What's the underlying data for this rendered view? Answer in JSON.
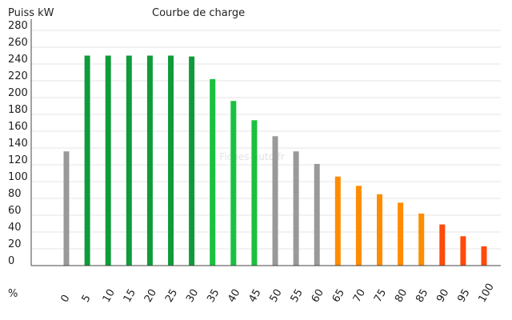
{
  "chart_data": {
    "type": "bar",
    "title": "Courbe de charge",
    "ylabel": "Puiss kW",
    "xlabel": "%",
    "watermark": "Fiches-auto.fr",
    "ylim": [
      0,
      280
    ],
    "yticks": [
      0,
      20,
      40,
      60,
      80,
      100,
      120,
      140,
      160,
      180,
      200,
      220,
      240,
      260,
      280
    ],
    "grid": true,
    "categories": [
      "0",
      "5",
      "10",
      "15",
      "20",
      "25",
      "30",
      "35",
      "40",
      "45",
      "50",
      "55",
      "60",
      "65",
      "70",
      "75",
      "80",
      "85",
      "90",
      "95",
      "100"
    ],
    "values": [
      136,
      250,
      250,
      250,
      250,
      250,
      249,
      222,
      196,
      173,
      154,
      136,
      121,
      106,
      95,
      85,
      75,
      62,
      49,
      35,
      23
    ],
    "colors": [
      "#999999",
      "#0f9b3a",
      "#0f9b3a",
      "#0f9b3a",
      "#0f9b3a",
      "#0f9b3a",
      "#0f9b3a",
      "#19c13f",
      "#19c13f",
      "#19c13f",
      "#999999",
      "#999999",
      "#999999",
      "#ff8c00",
      "#ff8c00",
      "#ff8c00",
      "#ff8c00",
      "#ff8c00",
      "#ff4a0a",
      "#ff4a0a",
      "#ff4a0a"
    ]
  }
}
